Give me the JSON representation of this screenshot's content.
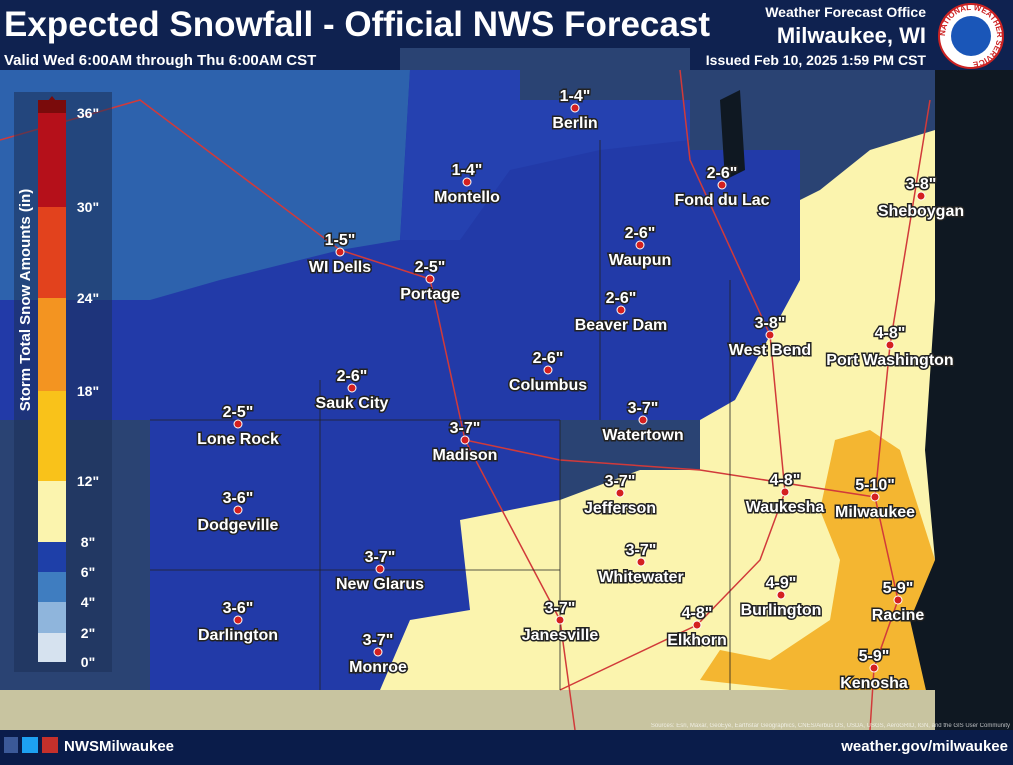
{
  "header": {
    "title": "Expected Snowfall - Official NWS Forecast",
    "subtitle": "Valid Wed 6:00AM through Thu 6:00AM CST",
    "office_label": "Weather Forecast Office",
    "office": "Milwaukee, WI",
    "issued": "Issued Feb 10, 2025 1:59 PM CST",
    "logo_text": "NATIONAL WEATHER SERVICE"
  },
  "legend": {
    "title": "Storm Total Snow Amounts (in)",
    "ticks": [
      "0\"",
      "2\"",
      "4\"",
      "6\"",
      "8\"",
      "12\"",
      "18\"",
      "24\"",
      "30\"",
      "36\""
    ]
  },
  "locations": [
    {
      "name": "Berlin",
      "amount": "1-4\""
    },
    {
      "name": "Montello",
      "amount": "1-4\""
    },
    {
      "name": "Fond du Lac",
      "amount": "2-6\""
    },
    {
      "name": "Sheboygan",
      "amount": "3-8\""
    },
    {
      "name": "WI Dells",
      "amount": "1-5\""
    },
    {
      "name": "Portage",
      "amount": "2-5\""
    },
    {
      "name": "Waupun",
      "amount": "2-6\""
    },
    {
      "name": "Beaver Dam",
      "amount": "2-6\""
    },
    {
      "name": "Columbus",
      "amount": "2-6\""
    },
    {
      "name": "West Bend",
      "amount": "3-8\""
    },
    {
      "name": "Port Washington",
      "amount": "4-8\""
    },
    {
      "name": "Sauk City",
      "amount": "2-6\""
    },
    {
      "name": "Lone Rock",
      "amount": "2-5\""
    },
    {
      "name": "Watertown",
      "amount": "3-7\""
    },
    {
      "name": "Madison",
      "amount": "3-7\""
    },
    {
      "name": "Jefferson",
      "amount": "3-7\""
    },
    {
      "name": "Waukesha",
      "amount": "4-8\""
    },
    {
      "name": "Milwaukee",
      "amount": "5-10\""
    },
    {
      "name": "Dodgeville",
      "amount": "3-6\""
    },
    {
      "name": "New Glarus",
      "amount": "3-7\""
    },
    {
      "name": "Whitewater",
      "amount": "3-7\""
    },
    {
      "name": "Janesville",
      "amount": "3-7\""
    },
    {
      "name": "Darlington",
      "amount": "3-6\""
    },
    {
      "name": "Burlington",
      "amount": "4-9\""
    },
    {
      "name": "Racine",
      "amount": "5-9\""
    },
    {
      "name": "Elkhorn",
      "amount": "4-8\""
    },
    {
      "name": "Monroe",
      "amount": "3-7\""
    },
    {
      "name": "Kenosha",
      "amount": "5-9\""
    }
  ],
  "footer": {
    "social": "NWSMilwaukee",
    "website": "weather.gov/milwaukee",
    "attribution": "Sources: Esri, Maxar, GeoEye, Earthstar Geographics, CNES/Airbus DS, USDA, USGS, AeroGRID, IGN, and the GIS User Community"
  }
}
